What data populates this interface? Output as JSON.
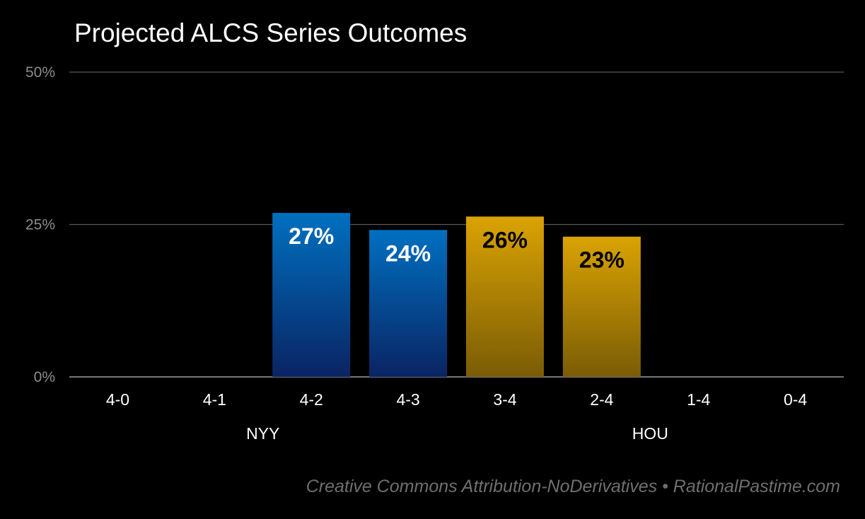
{
  "chart_data": {
    "type": "bar",
    "title": "Projected ALCS Series Outcomes",
    "categories": [
      "4-0",
      "4-1",
      "4-2",
      "4-3",
      "3-4",
      "2-4",
      "1-4",
      "0-4"
    ],
    "values": [
      0,
      0,
      26.9,
      24.1,
      26.3,
      23.0,
      0,
      0
    ],
    "value_labels": [
      "",
      "",
      "27%",
      "24%",
      "26%",
      "23%",
      "",
      ""
    ],
    "ylim": [
      0,
      50
    ],
    "yticks": [
      0,
      25,
      50
    ],
    "ytick_labels": [
      "0%",
      "25%",
      "50%"
    ],
    "xlabel": "",
    "ylabel": "",
    "grid": true,
    "groups": [
      {
        "label": "NYY",
        "categories": [
          "4-0",
          "4-1",
          "4-2",
          "4-3"
        ],
        "color_top": "#0070c0",
        "color_bottom": "#0a2463",
        "label_color": "#ffffff"
      },
      {
        "label": "HOU",
        "categories": [
          "3-4",
          "2-4",
          "1-4",
          "0-4"
        ],
        "color_top": "#daa304",
        "color_bottom": "#7a5c05",
        "label_color": "#000000"
      }
    ]
  },
  "footer": {
    "credit": "Creative Commons Attribution-NoDerivatives • RationalPastime.com"
  }
}
